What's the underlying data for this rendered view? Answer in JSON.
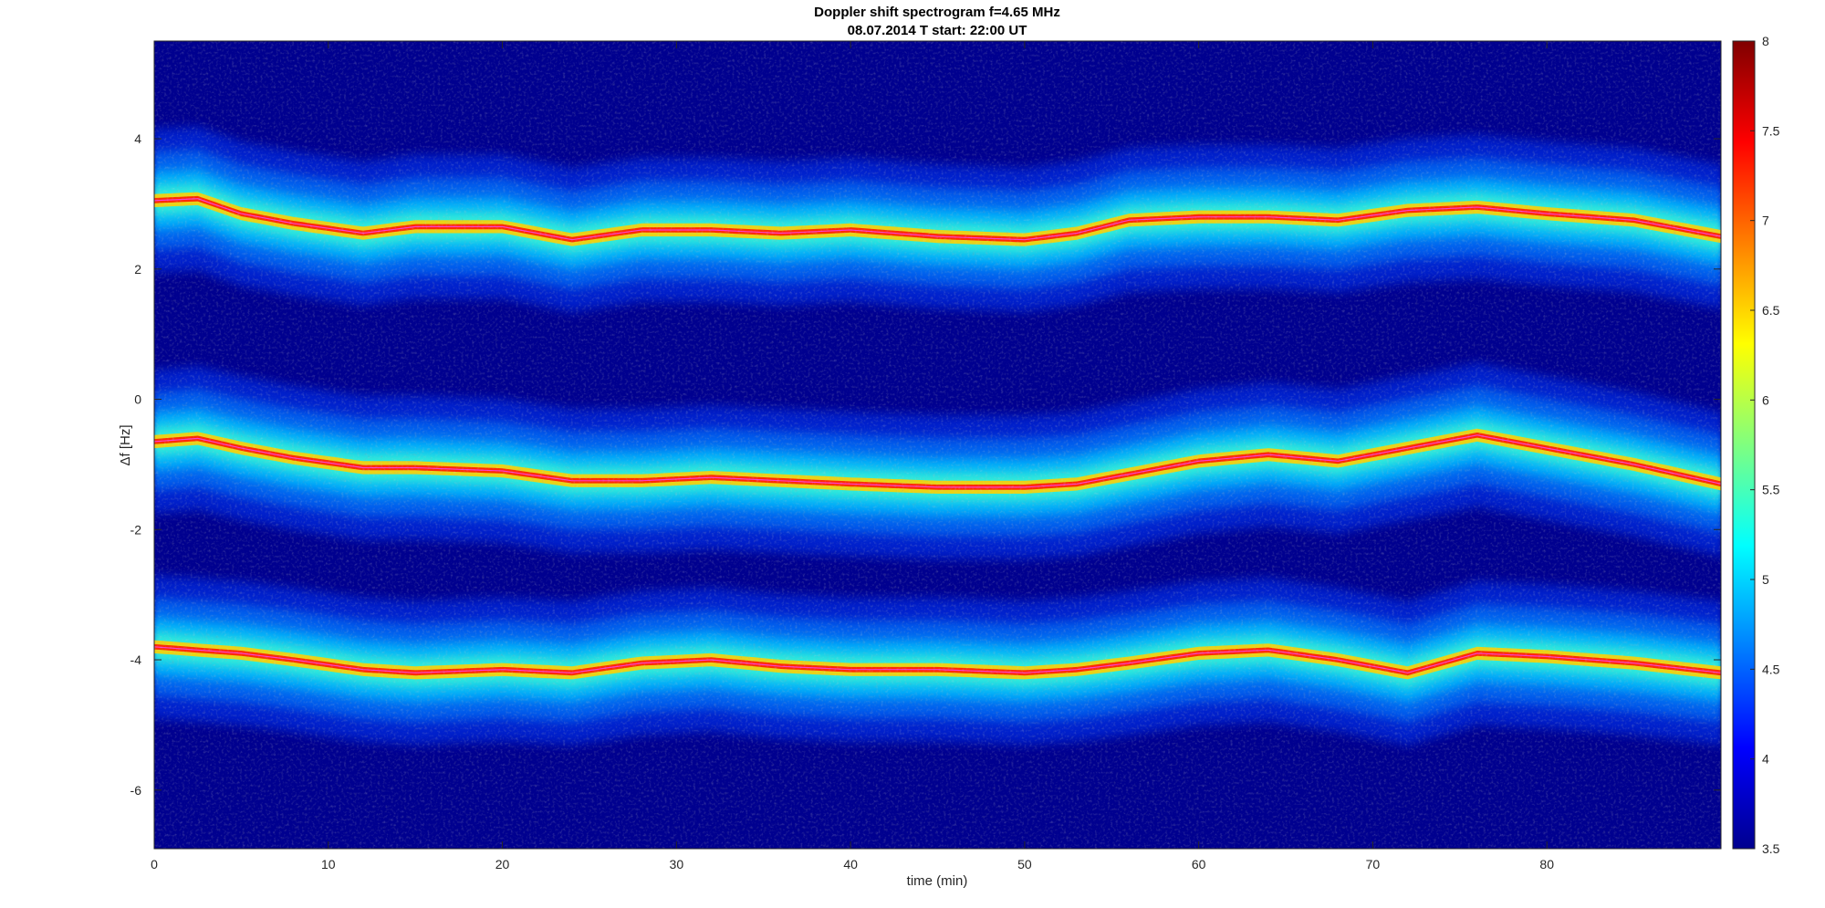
{
  "chart_data": {
    "type": "heatmap",
    "title": "Doppler shift spectrogram f=4.65 MHz",
    "subtitle": "08.07.2014   T start: 22:00 UT",
    "xlabel": "time (min)",
    "ylabel": "Δf [Hz]",
    "xlim": [
      0,
      90
    ],
    "ylim": [
      -6.9,
      5.5
    ],
    "x_ticks": [
      0,
      10,
      20,
      30,
      40,
      50,
      60,
      70,
      80
    ],
    "y_ticks": [
      4,
      2,
      0,
      -2,
      -4,
      -6
    ],
    "colorbar": {
      "colormap": "jet",
      "clim": [
        3.5,
        8
      ],
      "ticks": [
        8,
        7.5,
        7,
        6.5,
        6,
        5.5,
        5,
        4.5,
        4,
        3.5
      ]
    },
    "series": [
      {
        "x": [
          0,
          2.5,
          5,
          8,
          12,
          15,
          20,
          24,
          28,
          32,
          36,
          40,
          45,
          50,
          53,
          56,
          60,
          64,
          68,
          72,
          76,
          80,
          85,
          90
        ],
        "y": [
          3.05,
          3.08,
          2.85,
          2.7,
          2.55,
          2.65,
          2.65,
          2.45,
          2.6,
          2.6,
          2.55,
          2.6,
          2.5,
          2.45,
          2.55,
          2.75,
          2.8,
          2.8,
          2.75,
          2.9,
          2.95,
          2.85,
          2.75,
          2.5
        ]
      },
      {
        "x": [
          0,
          2.5,
          5,
          8,
          12,
          15,
          20,
          24,
          28,
          32,
          36,
          40,
          45,
          50,
          53,
          56,
          60,
          64,
          68,
          72,
          76,
          80,
          85,
          90
        ],
        "y": [
          -0.65,
          -0.6,
          -0.75,
          -0.9,
          -1.05,
          -1.05,
          -1.1,
          -1.25,
          -1.25,
          -1.2,
          -1.25,
          -1.3,
          -1.35,
          -1.35,
          -1.3,
          -1.15,
          -0.95,
          -0.85,
          -0.95,
          -0.75,
          -0.55,
          -0.75,
          -1.0,
          -1.3
        ]
      },
      {
        "x": [
          0,
          2.5,
          5,
          8,
          12,
          15,
          20,
          24,
          28,
          32,
          36,
          40,
          45,
          50,
          53,
          56,
          60,
          64,
          68,
          72,
          76,
          80,
          85,
          90
        ],
        "y": [
          -3.8,
          -3.85,
          -3.9,
          -4.0,
          -4.15,
          -4.2,
          -4.15,
          -4.2,
          -4.05,
          -4.0,
          -4.1,
          -4.15,
          -4.15,
          -4.2,
          -4.15,
          -4.05,
          -3.9,
          -3.85,
          -4.0,
          -4.2,
          -3.9,
          -3.95,
          -4.05,
          -4.2
        ]
      }
    ]
  }
}
